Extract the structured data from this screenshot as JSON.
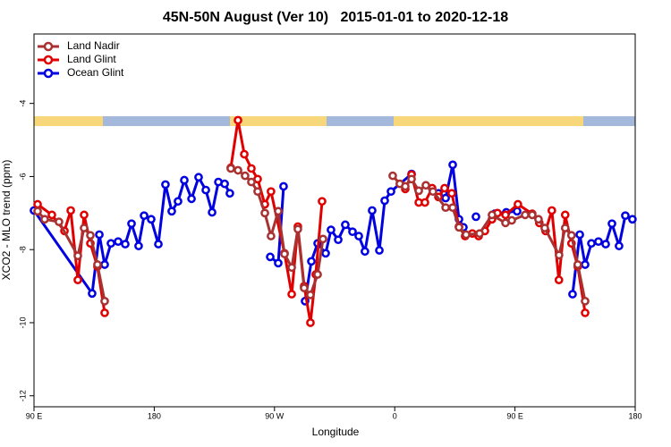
{
  "chart_data": {
    "type": "line",
    "title": "45N-50N August (Ver 10)   2015-01-01 to 2020-12-18",
    "x_label": "Longitude",
    "y_label": "XCO2 - MLO trend (ppm)",
    "xlim": [
      90,
      540
    ],
    "ylim": [
      -12.3,
      -2.1
    ],
    "xticks": [
      {
        "value": 90,
        "label": "90 E"
      },
      {
        "value": 180,
        "label": "180"
      },
      {
        "value": 270,
        "label": "90 W"
      },
      {
        "value": 360,
        "label": "0"
      },
      {
        "value": 450,
        "label": "90 E"
      },
      {
        "value": 540,
        "label": "180"
      }
    ],
    "yticks": [
      -4,
      -6,
      -8,
      -10,
      -12
    ],
    "legend": "top-left",
    "series": [
      {
        "name": "Land Nadir",
        "color": "#a83232",
        "x": [
          92.7,
          98,
          108.7,
          122.8,
          127.5,
          132.2,
          137.5,
          142.9,
          null,
          237.3,
          242.7,
          248,
          252.7,
          257.4,
          262.8,
          267.4,
          272.8,
          277.5,
          282.9,
          287.5,
          292.2,
          296.9,
          302.3,
          306.3,
          null,
          358.5,
          363.8,
          367.9,
          372.6,
          378,
          383.3,
          388.6,
          398.1,
          403.4,
          408.1,
          413.4,
          423.5,
          432.8,
          442.9,
          447.6,
          457.6,
          462.9,
          467.6,
          472.3,
          483,
          487.6,
          492.3,
          497,
          502.5
        ],
        "values": [
          -6.95,
          -7.17,
          -7.24,
          -8.17,
          -7.41,
          -7.61,
          -8.41,
          -9.41,
          null,
          -5.78,
          -5.83,
          -5.98,
          -6.15,
          -6.41,
          -7.0,
          -7.63,
          -6.95,
          -8.12,
          -8.49,
          -7.44,
          -9.05,
          -9.24,
          -8.68,
          -7.71,
          null,
          -5.98,
          -6.2,
          -6.27,
          -6.07,
          -6.39,
          -6.24,
          -6.41,
          -6.85,
          -6.85,
          -7.39,
          -7.59,
          -7.56,
          -7.05,
          -7.27,
          -7.2,
          -7.05,
          -7.05,
          -7.17,
          -7.41,
          -8.15,
          -7.41,
          -7.61,
          -8.41,
          -9.41
        ]
      },
      {
        "name": "Land Glint",
        "color": "#e00000",
        "x": [
          92.7,
          103.4,
          112.8,
          117.5,
          122.8,
          127.5,
          132.2,
          137.5,
          142.9,
          null,
          237.3,
          242.7,
          247.4,
          252.7,
          257.4,
          262.8,
          267.4,
          277.5,
          282.9,
          287.5,
          292.2,
          296.9,
          300.9,
          305.6,
          null,
          367.9,
          372.6,
          378,
          382.6,
          388,
          392.7,
          397.3,
          402.7,
          408.1,
          412.7,
          418.1,
          422.8,
          427.5,
          432.8,
          436.9,
          442.9,
          452.2,
          462.9,
          468.2,
          472.9,
          477.6,
          482.9,
          487.6,
          492.3,
          497,
          502.5
        ],
        "values": [
          -6.76,
          -7.05,
          -7.49,
          -6.93,
          -8.83,
          -7.05,
          -7.83,
          -8.46,
          -9.73,
          null,
          -5.76,
          -4.46,
          -5.39,
          -5.78,
          -6.07,
          -6.76,
          -6.41,
          -8.1,
          -9.22,
          -7.37,
          -9.0,
          -10.0,
          -8.68,
          -6.68,
          null,
          -6.34,
          -5.95,
          -6.71,
          -6.71,
          -6.32,
          -6.56,
          -6.32,
          -6.46,
          -7.37,
          -7.63,
          -7.56,
          -7.63,
          -7.49,
          -7.17,
          -7.0,
          -7.05,
          -6.76,
          -7.02,
          -7.27,
          -7.49,
          -6.93,
          -8.83,
          -7.05,
          -7.83,
          -8.46,
          -9.73
        ]
      },
      {
        "name": "Ocean Glint",
        "color": "#0000e0",
        "x": [
          90,
          133.5,
          138.9,
          142.9,
          147.6,
          153,
          158.3,
          163,
          168.3,
          172.4,
          177.7,
          183.1,
          188.4,
          193.1,
          197.8,
          202.5,
          207.9,
          213.2,
          218.6,
          223.3,
          228,
          232.7,
          236.6,
          null,
          266.8,
          272.8,
          276.8,
          null,
          292.9,
          297.6,
          302.3,
          308.3,
          312.3,
          317.7,
          323,
          328.4,
          333.1,
          337.7,
          343.1,
          348.5,
          352.5,
          357.2,
          372.6,
          null,
          392.7,
          398.1,
          403.4,
          408.1,
          411.4,
          null,
          420.8,
          null,
          434.8,
          443.5,
          451.6,
          null,
          493.1,
          498.5,
          502.5,
          507.2,
          512.5,
          517.9,
          522.6,
          527.9,
          532.6,
          537.9
        ],
        "values": [
          -6.93,
          -9.2,
          -7.59,
          -8.41,
          -7.83,
          -7.78,
          -7.85,
          -7.29,
          -7.9,
          -7.07,
          -7.17,
          -7.85,
          -6.22,
          -6.95,
          -6.68,
          -6.1,
          -6.61,
          -6.02,
          -6.37,
          -6.98,
          -6.15,
          -6.2,
          -6.46,
          null,
          -8.2,
          -8.37,
          -6.27,
          null,
          -9.41,
          -8.32,
          -7.83,
          -8.1,
          -7.46,
          -7.73,
          -7.32,
          -7.51,
          -7.63,
          -8.05,
          -6.93,
          -8.02,
          -6.66,
          -6.41,
          -5.93,
          null,
          -6.46,
          -6.59,
          -5.68,
          -7.17,
          -7.39,
          null,
          -7.1,
          null,
          -7.02,
          -6.98,
          -6.95,
          null,
          -9.22,
          -7.59,
          -8.41,
          -7.83,
          -7.78,
          -7.85,
          -7.29,
          -7.9,
          -7.07,
          -7.17
        ]
      }
    ]
  }
}
